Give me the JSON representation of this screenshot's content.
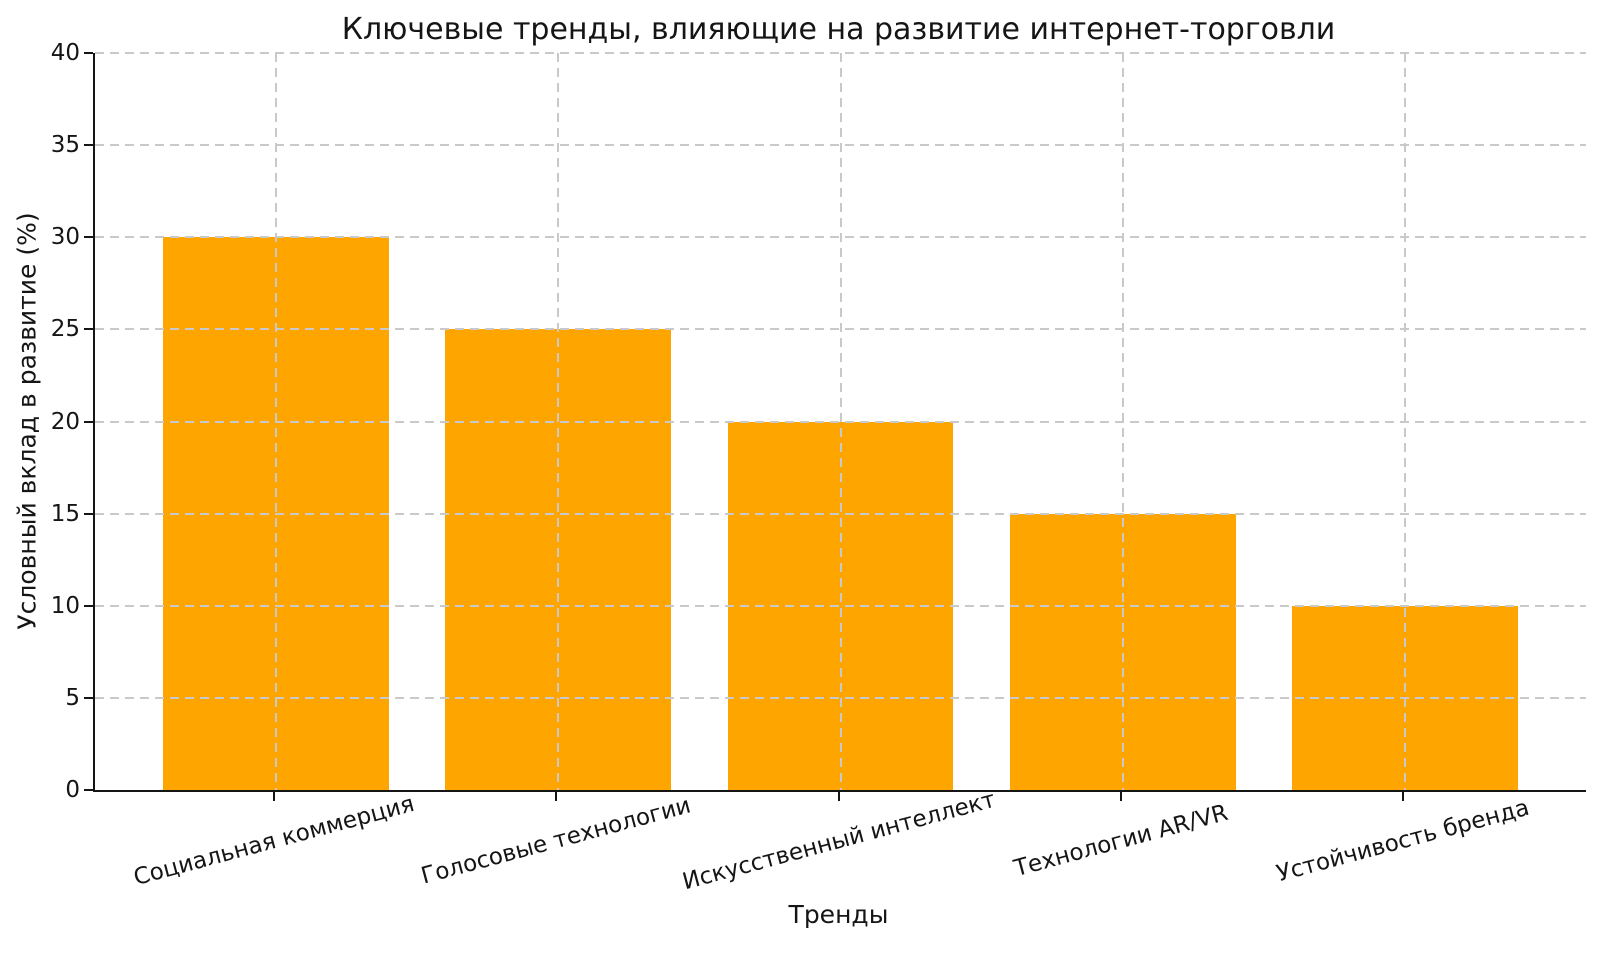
{
  "chart_data": {
    "type": "bar",
    "title": "Ключевые тренды, влияющие на развитие интернет-торговли",
    "xlabel": "Тренды",
    "ylabel": "Условный вклад в развитие (%)",
    "categories": [
      "Социальная коммерция",
      "Голосовые технологии",
      "Искусственный интеллект",
      "Технологии AR/VR",
      "Устойчивость бренда"
    ],
    "values": [
      30,
      25,
      20,
      15,
      10
    ],
    "yticks": [
      0,
      5,
      10,
      15,
      20,
      25,
      30,
      35,
      40
    ],
    "ylim": [
      0,
      40
    ],
    "bar_color": "#FFA500",
    "grid_color": "#C9C9C9",
    "axis_color": "#151515",
    "background_color": "#FFFFFF",
    "grid": "dashed, horizontal and vertical, drawn above bars",
    "legend_position": "none",
    "x_tick_rotation_deg": 15,
    "bar_width_fraction": 0.8
  }
}
